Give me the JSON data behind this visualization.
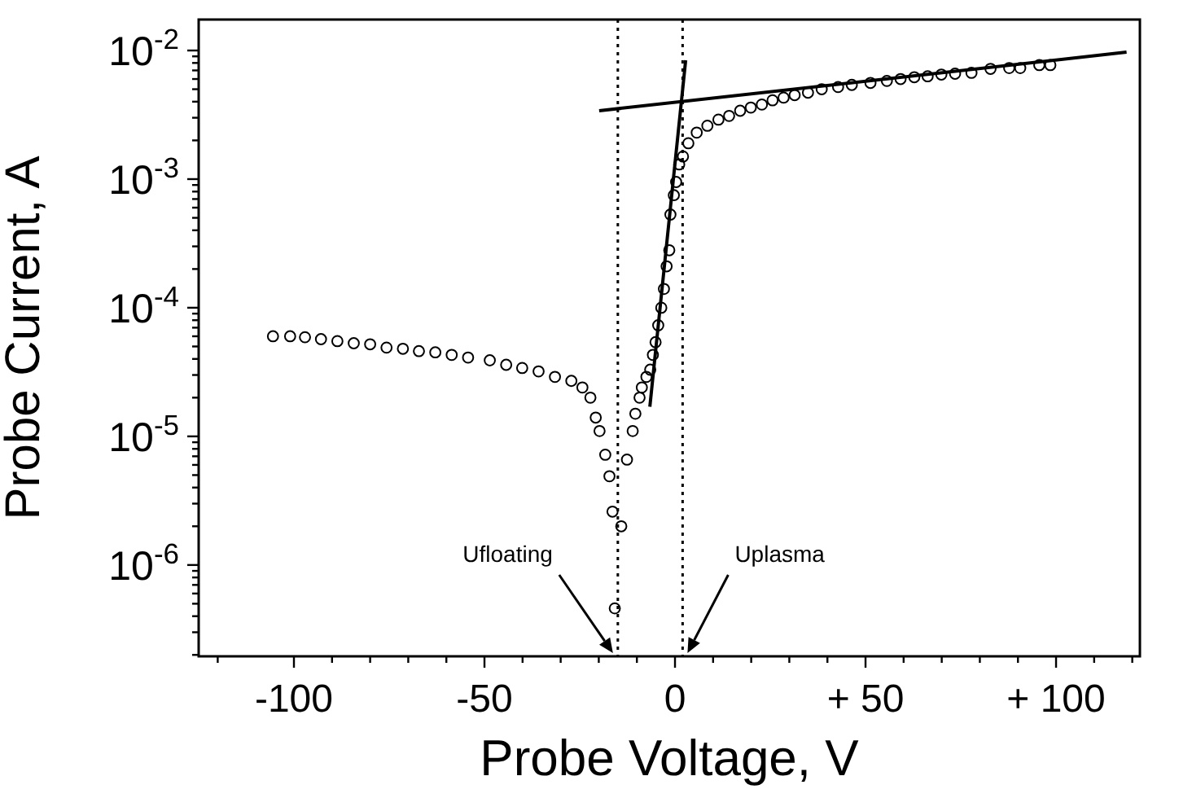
{
  "chart_data": {
    "type": "scatter",
    "xlabel": "Probe Voltage, V",
    "ylabel": "Probe Current, A",
    "log": "y",
    "grid": false,
    "marker": "circle",
    "xlim": [
      -125,
      122
    ],
    "ylim": [
      1.95e-07,
      0.0174
    ],
    "xticks": [
      {
        "value": -120,
        "label": null
      },
      -100,
      {
        "value": -90,
        "label": null
      },
      {
        "value": -80,
        "label": null
      },
      {
        "value": -70,
        "label": null
      },
      {
        "value": -60,
        "label": null
      },
      -50,
      {
        "value": -40,
        "label": null
      },
      {
        "value": -30,
        "label": null
      },
      {
        "value": -20,
        "label": null
      },
      {
        "value": -10,
        "label": null
      },
      0,
      {
        "value": 10,
        "label": null
      },
      {
        "value": 20,
        "label": null
      },
      {
        "value": 30,
        "label": null
      },
      {
        "value": 40,
        "label": null
      },
      {
        "value": 50,
        "label": "+ 50"
      },
      {
        "value": 60,
        "label": null
      },
      {
        "value": 70,
        "label": null
      },
      {
        "value": 80,
        "label": null
      },
      {
        "value": 90,
        "label": null
      },
      {
        "value": 100,
        "label": "+ 100"
      },
      {
        "value": 110,
        "label": null
      },
      {
        "value": 120,
        "label": null
      }
    ],
    "yticks": [
      {
        "value": 1e-06,
        "label": "10$^{-6}$"
      },
      {
        "value": 1e-05,
        "label": "10$^{-5}$"
      },
      {
        "value": 0.0001,
        "label": "10$^{-4}$"
      },
      {
        "value": 0.001,
        "label": "10$^{-3}$"
      },
      {
        "value": 0.01,
        "label": "10$^{-2}$"
      },
      {
        "value": 2e-07,
        "label": null
      },
      {
        "value": 3e-07,
        "label": null
      },
      {
        "value": 4e-07,
        "label": null
      },
      {
        "value": 5e-07,
        "label": null
      },
      {
        "value": 6e-07,
        "label": null
      },
      {
        "value": 7e-07,
        "label": null
      },
      {
        "value": 8e-07,
        "label": null
      },
      {
        "value": 9e-07,
        "label": null
      },
      {
        "value": 2e-06,
        "label": null
      },
      {
        "value": 3e-06,
        "label": null
      },
      {
        "value": 4e-06,
        "label": null
      },
      {
        "value": 5e-06,
        "label": null
      },
      {
        "value": 6e-06,
        "label": null
      },
      {
        "value": 7e-06,
        "label": null
      },
      {
        "value": 8e-06,
        "label": null
      },
      {
        "value": 9e-06,
        "label": null
      },
      {
        "value": 2e-05,
        "label": null
      },
      {
        "value": 3e-05,
        "label": null
      },
      {
        "value": 4e-05,
        "label": null
      },
      {
        "value": 5e-05,
        "label": null
      },
      {
        "value": 6e-05,
        "label": null
      },
      {
        "value": 7e-05,
        "label": null
      },
      {
        "value": 8e-05,
        "label": null
      },
      {
        "value": 9e-05,
        "label": null
      },
      {
        "value": 0.0002,
        "label": null
      },
      {
        "value": 0.0003,
        "label": null
      },
      {
        "value": 0.0004,
        "label": null
      },
      {
        "value": 0.0005,
        "label": null
      },
      {
        "value": 0.0006,
        "label": null
      },
      {
        "value": 0.0007,
        "label": null
      },
      {
        "value": 0.0008,
        "label": null
      },
      {
        "value": 0.0009,
        "label": null
      },
      {
        "value": 0.002,
        "label": null
      },
      {
        "value": 0.003,
        "label": null
      },
      {
        "value": 0.004,
        "label": null
      },
      {
        "value": 0.005,
        "label": null
      },
      {
        "value": 0.006,
        "label": null
      },
      {
        "value": 0.007,
        "label": null
      },
      {
        "value": 0.008,
        "label": null
      },
      {
        "value": 0.009,
        "label": null
      }
    ],
    "ref_lines": [
      {
        "axis": "x",
        "value": -15,
        "label": "Ufloating",
        "line_style": "dotted",
        "color": "#000000"
      },
      {
        "axis": "x",
        "value": 2,
        "label": "Uplasma",
        "line_style": "dotted",
        "color": "#000000"
      }
    ],
    "series": [
      {
        "color": "#000000",
        "x": [
          -105.5,
          -101.0,
          -97.1,
          -92.9,
          -88.6,
          -84.3,
          -80.0,
          -75.7,
          -71.4,
          -67.2,
          -62.9,
          -58.6,
          -54.3,
          -48.6,
          -44.3,
          -40.1,
          -35.8,
          -31.5,
          -27.2,
          -24.3,
          -22.2,
          -20.8,
          -19.8,
          -18.3,
          -17.2,
          -16.4,
          -15.8,
          -14.1,
          -12.6,
          -11.1,
          -10.4,
          -9.3,
          -8.7,
          -7.5,
          -6.5,
          -5.8,
          -5.1,
          -4.4,
          -3.6,
          -2.9,
          -2.2,
          -1.5,
          -1.2,
          -0.3,
          0.3,
          1.1,
          2.1,
          3.5,
          5.7,
          8.5,
          11.4,
          14.2,
          17.1,
          19.9,
          22.8,
          25.6,
          28.5,
          31.4,
          34.9,
          38.5,
          42.8,
          46.4,
          51.3,
          55.6,
          59.2,
          62.8,
          66.3,
          69.9,
          73.5,
          77.8,
          82.8,
          87.7,
          90.6,
          95.6,
          98.5
        ],
        "values": [
          6e-05,
          6e-05,
          5.9e-05,
          5.7e-05,
          5.5e-05,
          5.3e-05,
          5.2e-05,
          4.9e-05,
          4.8e-05,
          4.6e-05,
          4.5e-05,
          4.3e-05,
          4.1e-05,
          3.9e-05,
          3.6e-05,
          3.4e-05,
          3.2e-05,
          2.9e-05,
          2.7e-05,
          2.4e-05,
          2e-05,
          1.4e-05,
          1.1e-05,
          7.2e-06,
          4.9e-06,
          2.6e-06,
          4.6e-07,
          2e-06,
          6.6e-06,
          1.1e-05,
          1.5e-05,
          2e-05,
          2.4e-05,
          2.9e-05,
          3.3e-05,
          4.3e-05,
          5.4e-05,
          7.3e-05,
          0.0001,
          0.00014,
          0.00021,
          0.00028,
          0.00053,
          0.00075,
          0.00095,
          0.0013,
          0.0015,
          0.0019,
          0.0023,
          0.0026,
          0.0029,
          0.0031,
          0.0034,
          0.0036,
          0.0038,
          0.0041,
          0.0043,
          0.0045,
          0.0047,
          0.005,
          0.0052,
          0.0054,
          0.0056,
          0.0058,
          0.006,
          0.0062,
          0.0063,
          0.0065,
          0.0066,
          0.0067,
          0.0072,
          0.0073,
          0.0073,
          0.0077,
          0.0077
        ]
      },
      {
        "type": "line",
        "color": "#000000",
        "line_style": "solid",
        "marker": "none",
        "x": [
          -6.6,
          2.8
        ],
        "values": [
          1.7e-05,
          0.0084
        ]
      },
      {
        "type": "line",
        "color": "#000000",
        "line_style": "solid",
        "marker": "none",
        "x": [
          -19.9,
          118.5
        ],
        "values": [
          0.0034,
          0.0097
        ]
      }
    ]
  }
}
